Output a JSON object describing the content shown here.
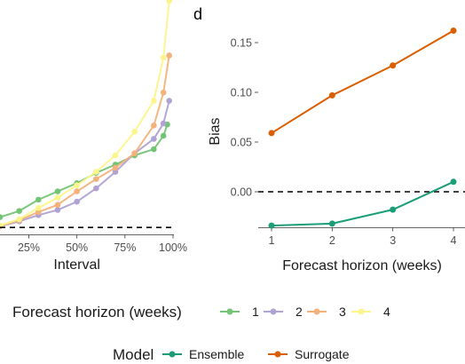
{
  "chart_data": [
    {
      "type": "line",
      "panel_label": "",
      "xlabel": "Interval",
      "ylabel": "",
      "x_tick_labels": [
        "25%",
        "50%",
        "75%",
        "100%"
      ],
      "x_ticks": [
        25,
        50,
        75,
        100
      ],
      "xlim": [
        10,
        100
      ],
      "ylim": [
        -0.04,
        0.16
      ],
      "reference_line_y": -0.035,
      "grid": false,
      "series": [
        {
          "name": "1",
          "color": "#74c476",
          "x": [
            10,
            20,
            30,
            40,
            50,
            60,
            70,
            80,
            90,
            95,
            97
          ],
          "y": [
            -0.025,
            -0.019,
            -0.008,
            0.0,
            0.008,
            0.018,
            0.026,
            0.035,
            0.041,
            0.054,
            0.065
          ]
        },
        {
          "name": "2",
          "color": "#b0a2d2",
          "x": [
            10,
            20,
            30,
            40,
            50,
            60,
            70,
            80,
            90,
            95,
            98
          ],
          "y": [
            -0.034,
            -0.029,
            -0.023,
            -0.018,
            -0.01,
            0.003,
            0.019,
            0.037,
            0.051,
            0.066,
            0.088
          ]
        },
        {
          "name": "3",
          "color": "#f4b27b",
          "x": [
            10,
            20,
            30,
            40,
            50,
            60,
            70,
            80,
            90,
            95,
            98
          ],
          "y": [
            -0.034,
            -0.028,
            -0.02,
            -0.013,
            0.0,
            0.012,
            0.023,
            0.037,
            0.064,
            0.096,
            0.132
          ]
        },
        {
          "name": "4",
          "color": "#fcf58c",
          "x": [
            10,
            20,
            30,
            40,
            50,
            60,
            70,
            80,
            90,
            95,
            98
          ],
          "y": [
            -0.033,
            -0.027,
            -0.016,
            -0.006,
            0.006,
            0.019,
            0.035,
            0.058,
            0.088,
            0.13,
            0.185
          ]
        }
      ]
    },
    {
      "type": "line",
      "panel_label": "d",
      "xlabel": "Forecast horizon (weeks)",
      "ylabel": "Bias",
      "x": [
        1,
        2,
        3,
        4
      ],
      "x_tick_labels": [
        "1",
        "2",
        "3",
        "4"
      ],
      "y_ticks": [
        0.0,
        0.05,
        0.1,
        0.15
      ],
      "y_tick_labels": [
        "0.00",
        "0.05",
        "0.10",
        "0.15"
      ],
      "xlim": [
        0.85,
        4.15
      ],
      "ylim": [
        -0.04,
        0.17
      ],
      "reference_line_y": 0,
      "grid": false,
      "series": [
        {
          "name": "Ensemble",
          "color": "#1b9e77",
          "values": [
            -0.034,
            -0.032,
            -0.018,
            0.01
          ]
        },
        {
          "name": "Surrogate",
          "color": "#d95f02",
          "values": [
            0.059,
            0.097,
            0.127,
            0.162
          ]
        }
      ]
    }
  ],
  "legends": {
    "horizon": {
      "title": "Forecast horizon (weeks)",
      "items": [
        {
          "label": "1",
          "color": "#74c476"
        },
        {
          "label": "2",
          "color": "#b0a2d2"
        },
        {
          "label": "3",
          "color": "#f4b27b"
        },
        {
          "label": "4",
          "color": "#fcf58c"
        }
      ]
    },
    "model": {
      "title": "Model",
      "items": [
        {
          "label": "Ensemble",
          "color": "#1b9e77"
        },
        {
          "label": "Surrogate",
          "color": "#d95f02"
        }
      ]
    }
  }
}
